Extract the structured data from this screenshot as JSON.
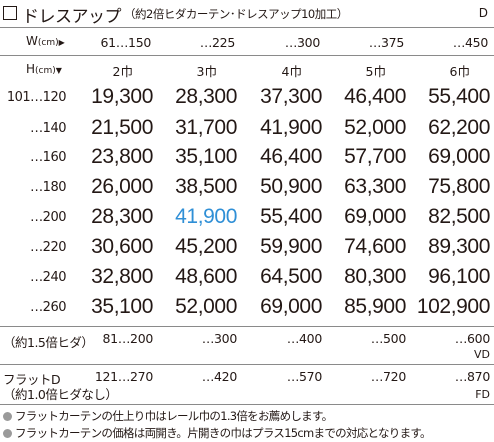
{
  "title": "ドレスアップ",
  "title_note": "（約2倍ヒダカーテン･ドレスアップ10加工）",
  "series_code": "D",
  "width_header": {
    "label": "W",
    "unit": "(cm)",
    "arrow": "▶",
    "values": [
      "61…150",
      "…225",
      "…300",
      "…375",
      "…450"
    ]
  },
  "height_header": {
    "label": "H",
    "unit": "(cm)",
    "arrow": "▼",
    "panels": [
      "2巾",
      "3巾",
      "4巾",
      "5巾",
      "6巾"
    ]
  },
  "rows": [
    {
      "height": "101…120",
      "prices": [
        "19,300",
        "28,300",
        "37,300",
        "46,400",
        "55,400"
      ]
    },
    {
      "height": "…140",
      "prices": [
        "21,500",
        "31,700",
        "41,900",
        "52,000",
        "62,200"
      ]
    },
    {
      "height": "…160",
      "prices": [
        "23,800",
        "35,100",
        "46,400",
        "57,700",
        "69,000"
      ]
    },
    {
      "height": "…180",
      "prices": [
        "26,000",
        "38,500",
        "50,900",
        "63,300",
        "75,800"
      ]
    },
    {
      "height": "…200",
      "prices": [
        "28,300",
        "41,900",
        "55,400",
        "69,000",
        "82,500"
      ]
    },
    {
      "height": "…220",
      "prices": [
        "30,600",
        "45,200",
        "59,900",
        "74,600",
        "89,300"
      ]
    },
    {
      "height": "…240",
      "prices": [
        "32,800",
        "48,600",
        "64,500",
        "80,300",
        "96,100"
      ]
    },
    {
      "height": "…260",
      "prices": [
        "35,100",
        "52,000",
        "69,000",
        "85,900",
        "102,900"
      ]
    }
  ],
  "highlight_color": "#2f8fd6",
  "vd_row": {
    "label": "（約1.5倍ヒダ）",
    "values": [
      "81…200",
      "…300",
      "…400",
      "…500",
      "…600"
    ],
    "code": "VD"
  },
  "fd_row": {
    "label": "フラットD",
    "label2": "（約1.0倍ヒダなし）",
    "values": [
      "121…270",
      "…420",
      "…570",
      "…720",
      "…870"
    ],
    "code": "FD"
  },
  "notes": [
    "フラットカーテンの仕上り巾はレール巾の1.3倍をお薦めします。",
    "フラットカーテンの価格は両開き。片開きの巾はプラス15cmまでの対応となります。"
  ]
}
